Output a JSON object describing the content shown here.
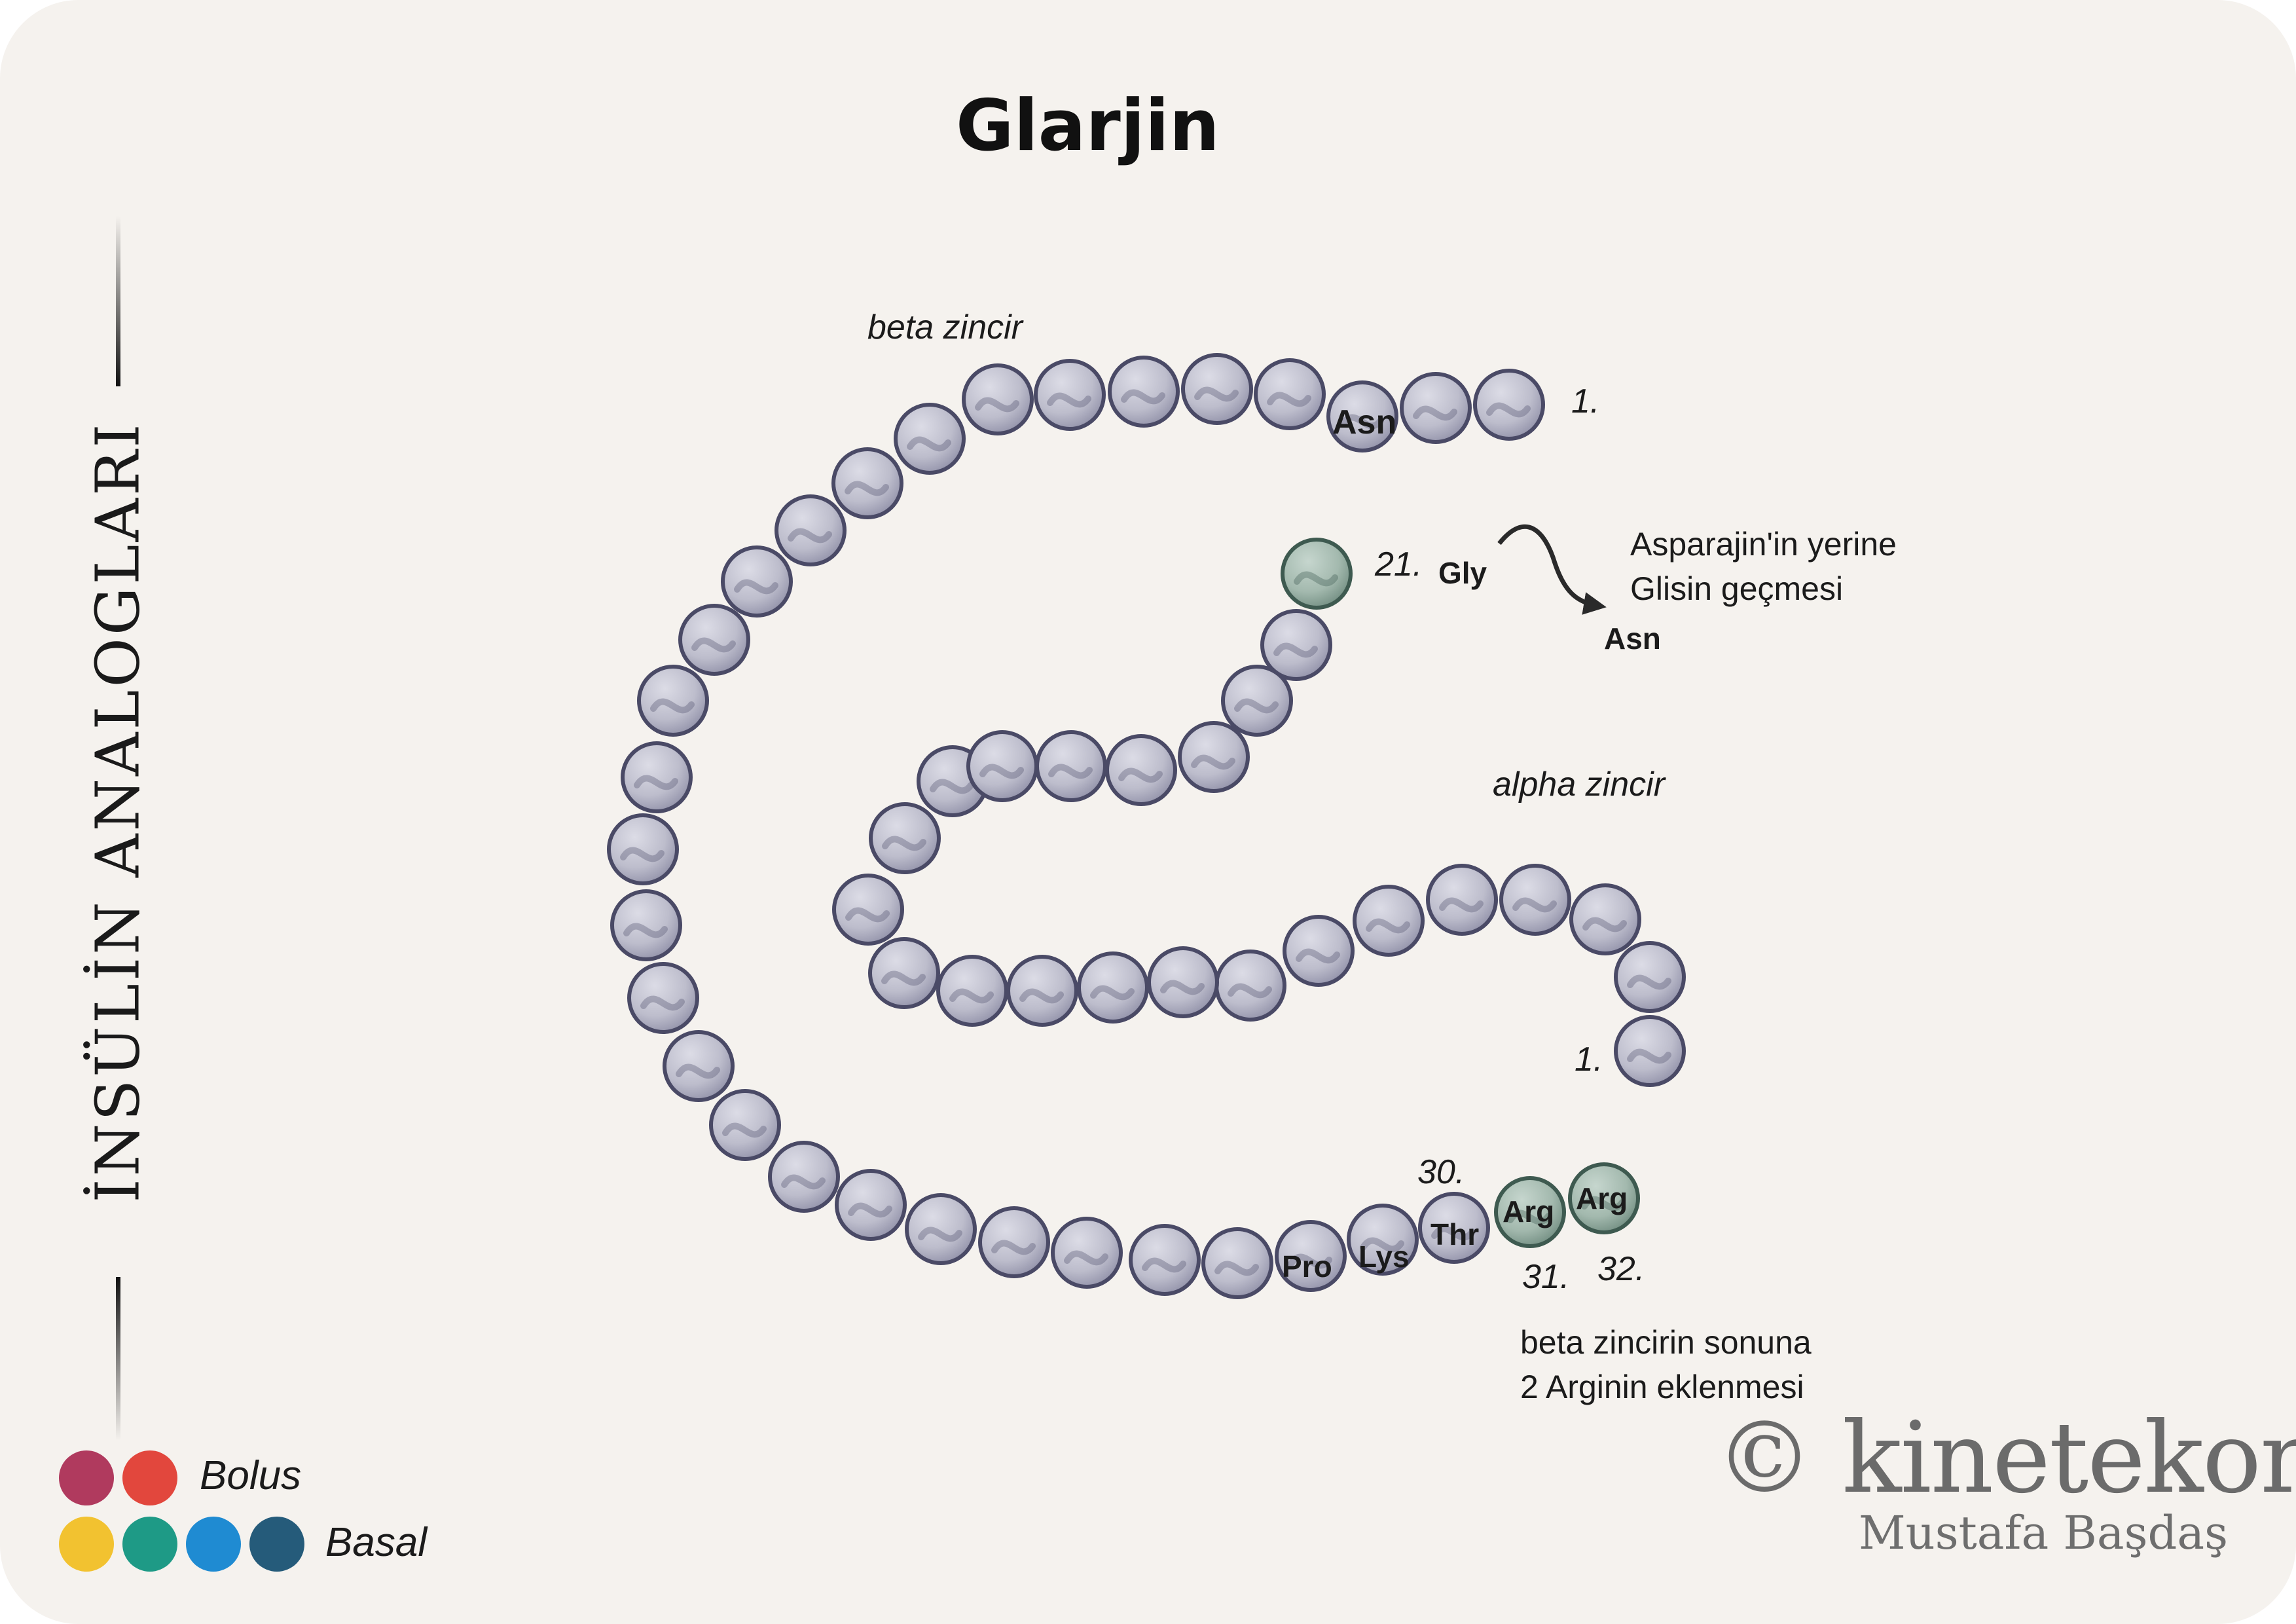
{
  "title": "Glarjin",
  "side_title": "İNSÜLİN ANALOGLARI",
  "beta_chain_label": "beta zincir",
  "alpha_chain_label": "alpha zincir",
  "beta_start_label": "1.",
  "alpha_start_label": "1.",
  "alpha_21_label": "21.",
  "beta_30_label": "30.",
  "beta_31_label": "31.",
  "beta_32_label": "32.",
  "residue_asn_beta": "Asn",
  "residue_gly": "Gly",
  "residue_pro": "Pro",
  "residue_lys": "Lys",
  "residue_thr": "Thr",
  "residue_arg_31": "Arg",
  "residue_arg_32": "Arg",
  "substitution_target": "Asn",
  "note_substitution": [
    "Asparajin'in yerine",
    "Glisin geçmesi"
  ],
  "note_arginine": [
    "beta zincirin sonuna",
    "2 Arginin eklenmesi"
  ],
  "legend": {
    "bolus_label": "Bolus",
    "basal_label": "Basal",
    "bolus_colors": [
      "#b03a5e",
      "#e2473d"
    ],
    "basal_colors": [
      "#f2c230",
      "#1e9a86",
      "#1f8bd2",
      "#255b7a"
    ]
  },
  "brand": "© kinetekor.",
  "author": "Mustafa Başdaş",
  "colors": {
    "residue_normal": "#b9b9c9",
    "residue_modified": "#9fb6ac",
    "background": "#f5f2ee"
  }
}
